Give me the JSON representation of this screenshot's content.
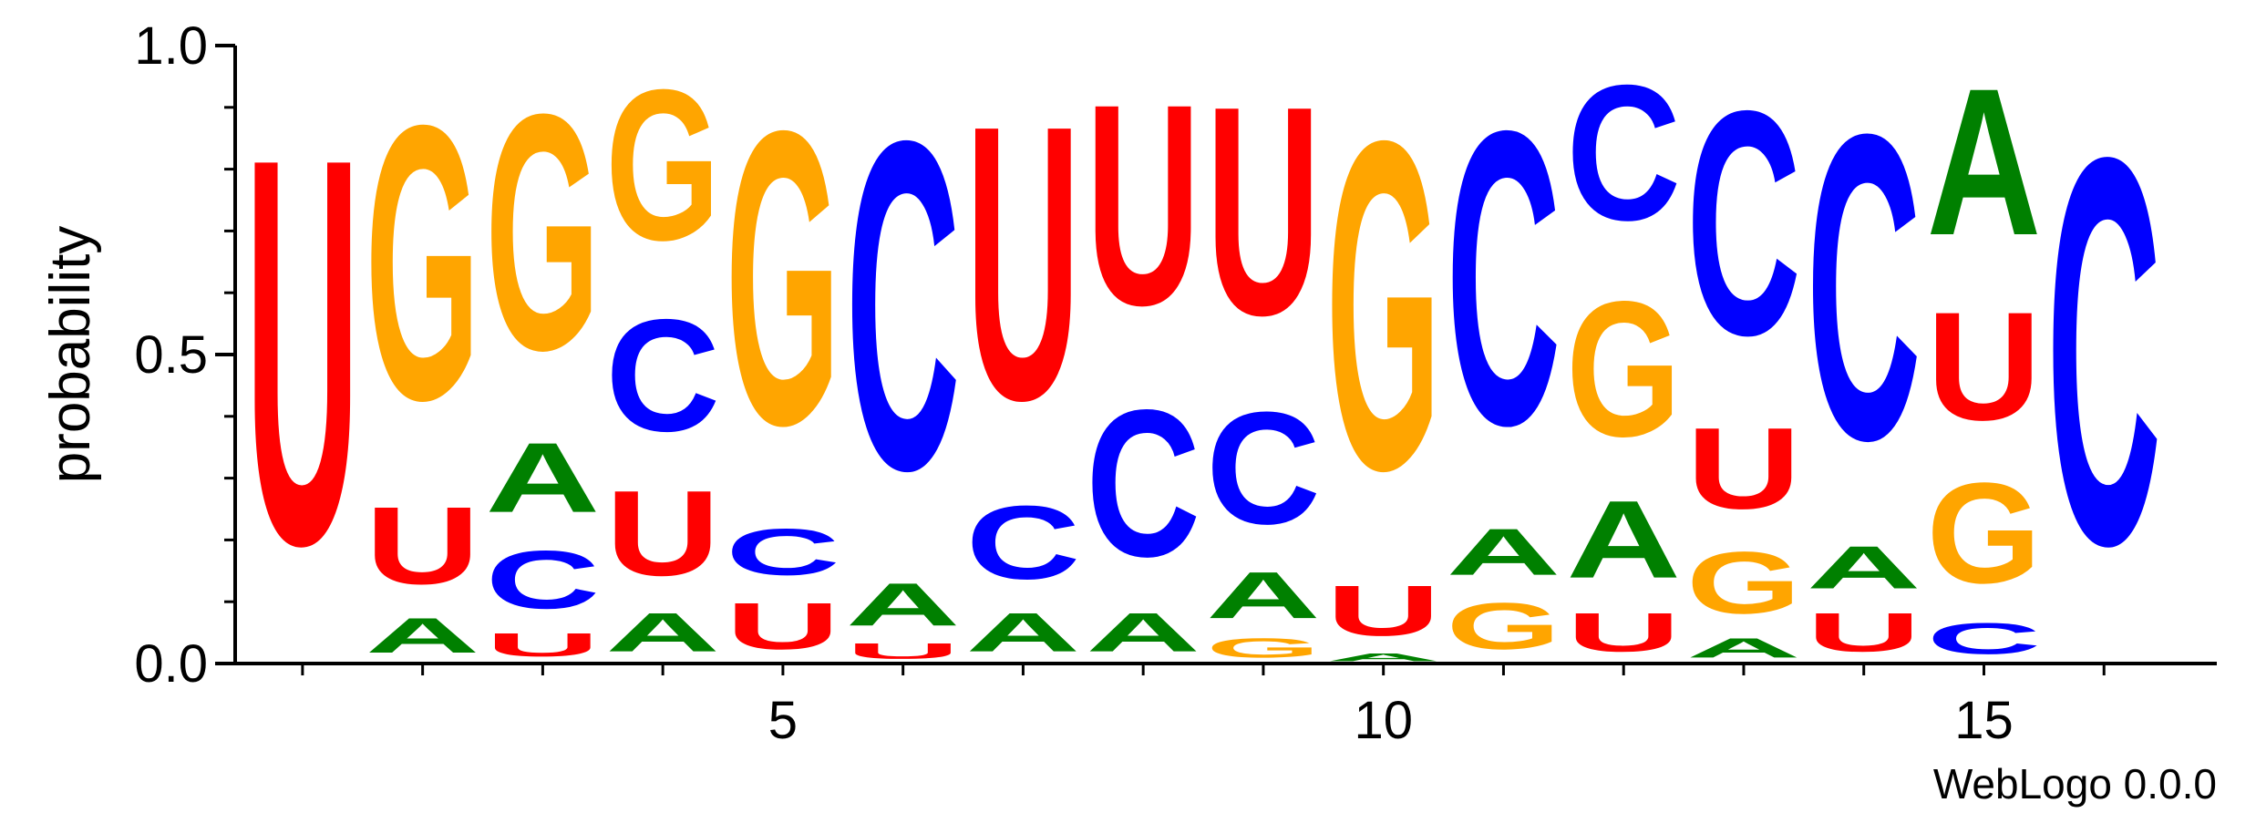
{
  "chart_data": {
    "type": "sequence-logo",
    "ylabel": "probability",
    "ylim": [
      0,
      1
    ],
    "yticks": [
      "0.0",
      "0.5",
      "1.0"
    ],
    "xticks": [
      {
        "position": 5,
        "label": "5"
      },
      {
        "position": 10,
        "label": "10"
      },
      {
        "position": 15,
        "label": "15"
      }
    ],
    "footer": "WebLogo 0.0.0",
    "colors": {
      "A": "#008000",
      "C": "#0000ff",
      "G": "#ffa500",
      "U": "#ff0000"
    },
    "positions": [
      {
        "position": 1,
        "stack": [
          {
            "letter": "U",
            "prob": 1.0
          }
        ]
      },
      {
        "position": 2,
        "stack": [
          {
            "letter": "A",
            "prob": 0.09
          },
          {
            "letter": "U",
            "prob": 0.2
          },
          {
            "letter": "G",
            "prob": 0.71
          }
        ]
      },
      {
        "position": 3,
        "stack": [
          {
            "letter": "U",
            "prob": 0.06
          },
          {
            "letter": "C",
            "prob": 0.15
          },
          {
            "letter": "A",
            "prob": 0.18
          },
          {
            "letter": "G",
            "prob": 0.61
          }
        ]
      },
      {
        "position": 4,
        "stack": [
          {
            "letter": "A",
            "prob": 0.1
          },
          {
            "letter": "U",
            "prob": 0.22
          },
          {
            "letter": "C",
            "prob": 0.29
          },
          {
            "letter": "G",
            "prob": 0.39
          }
        ]
      },
      {
        "position": 5,
        "stack": [
          {
            "letter": "U",
            "prob": 0.12
          },
          {
            "letter": "C",
            "prob": 0.12
          },
          {
            "letter": "G",
            "prob": 0.76
          }
        ]
      },
      {
        "position": 6,
        "stack": [
          {
            "letter": "U",
            "prob": 0.04
          },
          {
            "letter": "A",
            "prob": 0.11
          },
          {
            "letter": "C",
            "prob": 0.85
          }
        ]
      },
      {
        "position": 7,
        "stack": [
          {
            "letter": "A",
            "prob": 0.1
          },
          {
            "letter": "C",
            "prob": 0.19
          },
          {
            "letter": "U",
            "prob": 0.71
          }
        ]
      },
      {
        "position": 8,
        "stack": [
          {
            "letter": "A",
            "prob": 0.1
          },
          {
            "letter": "C",
            "prob": 0.38
          },
          {
            "letter": "U",
            "prob": 0.52
          }
        ]
      },
      {
        "position": 9,
        "stack": [
          {
            "letter": "G",
            "prob": 0.05
          },
          {
            "letter": "A",
            "prob": 0.12
          },
          {
            "letter": "C",
            "prob": 0.29
          },
          {
            "letter": "U",
            "prob": 0.54
          }
        ]
      },
      {
        "position": 10,
        "stack": [
          {
            "letter": "A",
            "prob": 0.02
          },
          {
            "letter": "U",
            "prob": 0.13
          },
          {
            "letter": "G",
            "prob": 0.85
          }
        ]
      },
      {
        "position": 11,
        "stack": [
          {
            "letter": "G",
            "prob": 0.12
          },
          {
            "letter": "A",
            "prob": 0.12
          },
          {
            "letter": "C",
            "prob": 0.76
          }
        ]
      },
      {
        "position": 12,
        "stack": [
          {
            "letter": "U",
            "prob": 0.1
          },
          {
            "letter": "A",
            "prob": 0.2
          },
          {
            "letter": "G",
            "prob": 0.35
          },
          {
            "letter": "C",
            "prob": 0.35
          }
        ]
      },
      {
        "position": 13,
        "stack": [
          {
            "letter": "A",
            "prob": 0.05
          },
          {
            "letter": "G",
            "prob": 0.16
          },
          {
            "letter": "U",
            "prob": 0.21
          },
          {
            "letter": "C",
            "prob": 0.58
          }
        ]
      },
      {
        "position": 14,
        "stack": [
          {
            "letter": "U",
            "prob": 0.1
          },
          {
            "letter": "A",
            "prob": 0.11
          },
          {
            "letter": "C",
            "prob": 0.79
          }
        ]
      },
      {
        "position": 15,
        "stack": [
          {
            "letter": "C",
            "prob": 0.08
          },
          {
            "letter": "G",
            "prob": 0.26
          },
          {
            "letter": "U",
            "prob": 0.28
          },
          {
            "letter": "A",
            "prob": 0.38
          }
        ]
      },
      {
        "position": 16,
        "stack": [
          {
            "letter": "C",
            "prob": 1.0
          }
        ]
      }
    ]
  }
}
